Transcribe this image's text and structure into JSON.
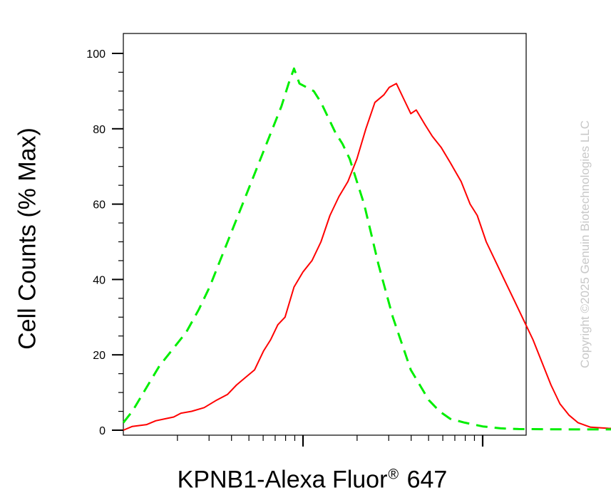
{
  "chart_data": {
    "type": "line",
    "title": "",
    "xlabel_main": "KPNB1-Alexa Fluor",
    "xlabel_mark": "®",
    "xlabel_suffix": " 647",
    "ylabel": "Cell Counts (% Max)",
    "xscale": "log",
    "ylim": [
      0,
      105
    ],
    "yticks": [
      0,
      20,
      40,
      60,
      80,
      100
    ],
    "grid": false,
    "legend": "none",
    "copyright": "Copyright ©2025 Genuin Biotechnologies LLC",
    "series": [
      {
        "style": "solid",
        "color": "#ff0000",
        "points": [
          [
            0.0,
            0
          ],
          [
            0.05,
            1
          ],
          [
            0.13,
            1.5
          ],
          [
            0.18,
            2.5
          ],
          [
            0.23,
            3
          ],
          [
            0.28,
            3.5
          ],
          [
            0.32,
            4.5
          ],
          [
            0.38,
            5
          ],
          [
            0.45,
            6
          ],
          [
            0.52,
            8
          ],
          [
            0.58,
            9.5
          ],
          [
            0.63,
            12
          ],
          [
            0.68,
            14
          ],
          [
            0.73,
            16
          ],
          [
            0.78,
            21
          ],
          [
            0.82,
            24
          ],
          [
            0.86,
            28
          ],
          [
            0.9,
            30
          ],
          [
            0.95,
            38
          ],
          [
            1.0,
            42
          ],
          [
            1.05,
            45
          ],
          [
            1.1,
            50
          ],
          [
            1.15,
            57
          ],
          [
            1.2,
            62
          ],
          [
            1.25,
            66
          ],
          [
            1.3,
            72
          ],
          [
            1.35,
            80
          ],
          [
            1.4,
            87
          ],
          [
            1.45,
            89
          ],
          [
            1.48,
            91
          ],
          [
            1.52,
            92
          ],
          [
            1.56,
            88
          ],
          [
            1.6,
            84
          ],
          [
            1.63,
            85
          ],
          [
            1.68,
            81
          ],
          [
            1.72,
            78
          ],
          [
            1.77,
            75
          ],
          [
            1.82,
            71
          ],
          [
            1.88,
            66
          ],
          [
            1.93,
            60
          ],
          [
            1.97,
            57
          ],
          [
            2.02,
            50
          ],
          [
            2.07,
            45
          ],
          [
            2.12,
            40
          ],
          [
            2.18,
            34
          ],
          [
            2.23,
            29
          ],
          [
            2.28,
            24
          ],
          [
            2.33,
            18
          ],
          [
            2.38,
            12
          ],
          [
            2.43,
            7
          ],
          [
            2.48,
            4
          ],
          [
            2.53,
            2
          ],
          [
            2.6,
            0.8
          ],
          [
            2.7,
            0.5
          ],
          [
            2.9,
            0.3
          ],
          [
            3.2,
            0.2
          ],
          [
            3.6,
            0.2
          ],
          [
            4.0,
            0.1
          ],
          [
            4.5,
            0.1
          ]
        ]
      },
      {
        "style": "dashed",
        "color": "#00ee00",
        "points": [
          [
            0.0,
            2
          ],
          [
            0.05,
            5
          ],
          [
            0.1,
            9
          ],
          [
            0.15,
            13
          ],
          [
            0.2,
            17
          ],
          [
            0.25,
            20
          ],
          [
            0.3,
            23
          ],
          [
            0.35,
            26
          ],
          [
            0.42,
            32
          ],
          [
            0.48,
            38
          ],
          [
            0.53,
            44
          ],
          [
            0.58,
            50
          ],
          [
            0.63,
            56
          ],
          [
            0.68,
            62
          ],
          [
            0.73,
            68
          ],
          [
            0.78,
            74
          ],
          [
            0.83,
            80
          ],
          [
            0.88,
            86
          ],
          [
            0.92,
            92
          ],
          [
            0.95,
            96
          ],
          [
            0.98,
            92
          ],
          [
            1.02,
            91
          ],
          [
            1.06,
            90
          ],
          [
            1.1,
            87
          ],
          [
            1.14,
            83
          ],
          [
            1.18,
            79
          ],
          [
            1.22,
            76
          ],
          [
            1.26,
            72
          ],
          [
            1.3,
            66
          ],
          [
            1.34,
            60
          ],
          [
            1.38,
            52
          ],
          [
            1.42,
            44
          ],
          [
            1.46,
            37
          ],
          [
            1.5,
            30
          ],
          [
            1.55,
            23
          ],
          [
            1.6,
            16
          ],
          [
            1.65,
            12
          ],
          [
            1.7,
            8
          ],
          [
            1.76,
            5
          ],
          [
            1.82,
            3
          ],
          [
            1.9,
            2
          ],
          [
            2.0,
            1
          ],
          [
            2.1,
            0.5
          ],
          [
            2.2,
            0.3
          ],
          [
            2.5,
            0.2
          ],
          [
            3.0,
            0.2
          ],
          [
            3.5,
            0.2
          ],
          [
            4.0,
            0.1
          ],
          [
            4.5,
            0.1
          ]
        ]
      }
    ]
  }
}
